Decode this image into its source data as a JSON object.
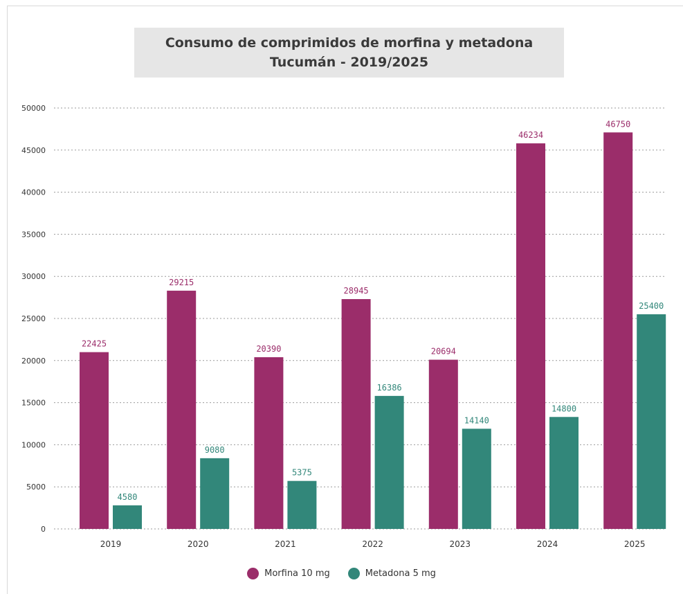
{
  "chart_data": {
    "type": "bar",
    "title": "Consumo de comprimidos de morfina y metadona",
    "subtitle": "Tucumán - 2019/2025",
    "categories": [
      "2019",
      "2020",
      "2021",
      "2022",
      "2023",
      "2024",
      "2025"
    ],
    "series": [
      {
        "name": "Morfina 10 mg",
        "color": "#9b2d6a",
        "values": [
          22425,
          29215,
          20390,
          28945,
          20694,
          46234,
          46750
        ],
        "bar_heights": [
          21000,
          28300,
          20400,
          27300,
          20100,
          45800,
          47100
        ]
      },
      {
        "name": "Metadona 5 mg",
        "color": "#32877a",
        "values": [
          4580,
          9080,
          5375,
          16386,
          14140,
          14800,
          25400
        ],
        "bar_heights": [
          2800,
          8400,
          5700,
          15800,
          11900,
          13300,
          25500
        ]
      }
    ],
    "ylim": [
      0,
      50000
    ],
    "yticks": [
      "0",
      "5000",
      "10000",
      "15000",
      "20000",
      "25000",
      "30000",
      "35000",
      "40000",
      "45000",
      "50000"
    ],
    "grid": true,
    "legend_position": "bottom-center"
  }
}
